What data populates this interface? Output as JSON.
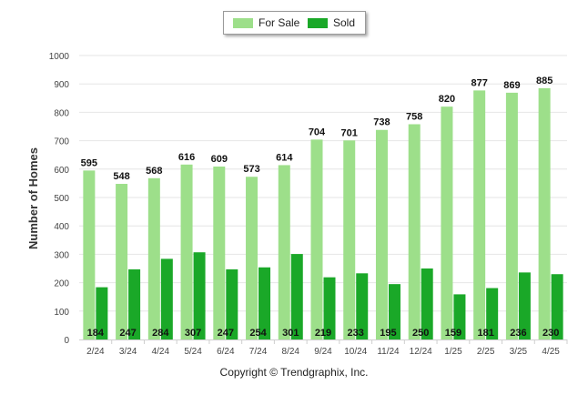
{
  "chart_data": {
    "type": "bar",
    "ylabel": "Number of Homes",
    "xlabel": "",
    "ylim": [
      0,
      1000
    ],
    "yticks": [
      0,
      100,
      200,
      300,
      400,
      500,
      600,
      700,
      800,
      900,
      1000
    ],
    "grid": true,
    "legend_position": "top-center",
    "categories": [
      "2/24",
      "3/24",
      "4/24",
      "5/24",
      "6/24",
      "7/24",
      "8/24",
      "9/24",
      "10/24",
      "11/24",
      "12/24",
      "1/25",
      "2/25",
      "3/25",
      "4/25"
    ],
    "series": [
      {
        "name": "For Sale",
        "color": "#9ddf8a",
        "values": [
          595,
          548,
          568,
          616,
          609,
          573,
          614,
          704,
          701,
          738,
          758,
          820,
          877,
          869,
          885
        ]
      },
      {
        "name": "Sold",
        "color": "#1aa828",
        "values": [
          184,
          247,
          284,
          307,
          247,
          254,
          301,
          219,
          233,
          195,
          250,
          159,
          181,
          236,
          230
        ]
      }
    ]
  },
  "footer": {
    "copyright": "Copyright © Trendgraphix, Inc."
  }
}
